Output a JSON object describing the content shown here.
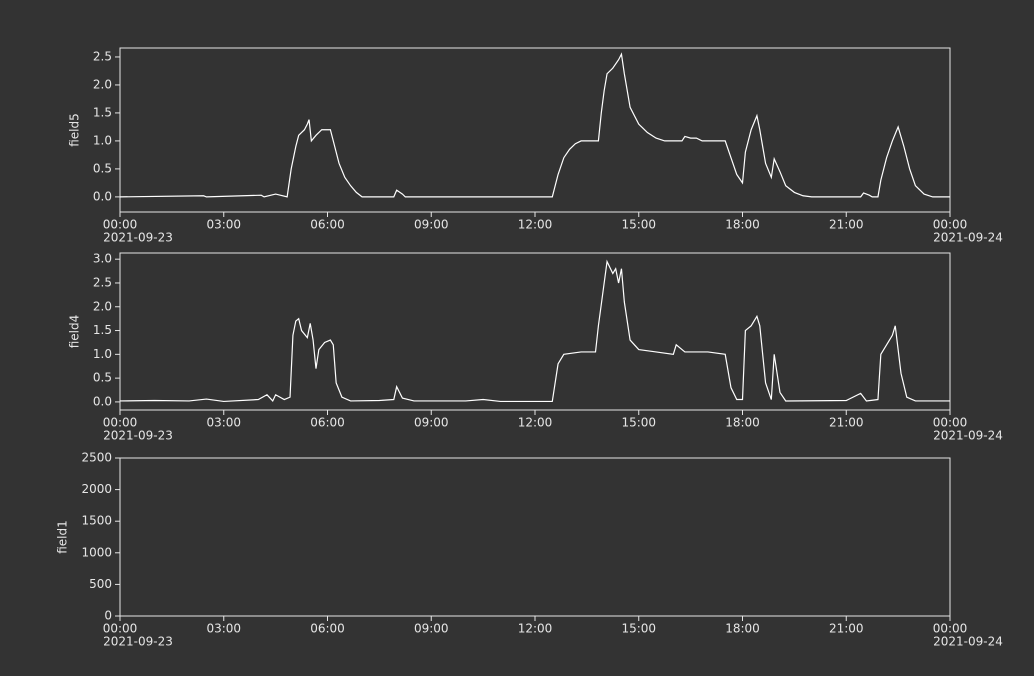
{
  "chart_data": [
    {
      "type": "line",
      "ylabel": "field5",
      "xlim": [
        "2021-09-23 00:00",
        "2021-09-24 00:00"
      ],
      "xticks": [
        {
          "value": "2021-09-23 00:00",
          "label": "00:00",
          "date": "2021-09-23"
        },
        {
          "value": "2021-09-23 03:00",
          "label": "03:00"
        },
        {
          "value": "2021-09-23 06:00",
          "label": "06:00"
        },
        {
          "value": "2021-09-23 09:00",
          "label": "09:00"
        },
        {
          "value": "2021-09-23 12:00",
          "label": "12:00"
        },
        {
          "value": "2021-09-23 15:00",
          "label": "15:00"
        },
        {
          "value": "2021-09-23 18:00",
          "label": "18:00"
        },
        {
          "value": "2021-09-23 21:00",
          "label": "21:00"
        },
        {
          "value": "2021-09-24 00:00",
          "label": "00:00",
          "date": "2021-09-24"
        }
      ],
      "ylim": [
        -0.27,
        2.66
      ],
      "yticks": [
        {
          "value": 0,
          "label": "0.0"
        },
        0.5,
        {
          "value": 1,
          "label": "1.0"
        },
        1.5,
        {
          "value": 2,
          "label": "2.0"
        },
        2.5
      ],
      "series": [
        {
          "color": "#ffffff",
          "x": [
            "2021-09-23 00:00",
            "2021-09-23 02:25",
            "2021-09-23 02:30",
            "2021-09-23 04:05",
            "2021-09-23 04:10",
            "2021-09-23 04:30",
            "2021-09-23 04:50",
            "2021-09-23 04:57",
            "2021-09-23 05:05",
            "2021-09-23 05:10",
            "2021-09-23 05:20",
            "2021-09-23 05:25",
            "2021-09-23 05:28",
            "2021-09-23 05:32",
            "2021-09-23 05:40",
            "2021-09-23 05:50",
            "2021-09-23 06:05",
            "2021-09-23 06:10",
            "2021-09-23 06:20",
            "2021-09-23 06:30",
            "2021-09-23 06:40",
            "2021-09-23 06:50",
            "2021-09-23 07:00",
            "2021-09-23 07:55",
            "2021-09-23 08:00",
            "2021-09-23 08:10",
            "2021-09-23 08:15",
            "2021-09-23 12:30",
            "2021-09-23 12:40",
            "2021-09-23 12:50",
            "2021-09-23 13:00",
            "2021-09-23 13:10",
            "2021-09-23 13:20",
            "2021-09-23 13:50",
            "2021-09-23 13:55",
            "2021-09-23 14:00",
            "2021-09-23 14:05",
            "2021-09-23 14:15",
            "2021-09-23 14:25",
            "2021-09-23 14:30",
            "2021-09-23 14:35",
            "2021-09-23 14:45",
            "2021-09-23 15:00",
            "2021-09-23 15:15",
            "2021-09-23 15:30",
            "2021-09-23 15:45",
            "2021-09-23 16:15",
            "2021-09-23 16:20",
            "2021-09-23 16:30",
            "2021-09-23 16:40",
            "2021-09-23 16:50",
            "2021-09-23 17:30",
            "2021-09-23 17:40",
            "2021-09-23 17:50",
            "2021-09-23 18:00",
            "2021-09-23 18:05",
            "2021-09-23 18:15",
            "2021-09-23 18:25",
            "2021-09-23 18:30",
            "2021-09-23 18:40",
            "2021-09-23 18:50",
            "2021-09-23 18:55",
            "2021-09-23 19:05",
            "2021-09-23 19:15",
            "2021-09-23 19:30",
            "2021-09-23 19:45",
            "2021-09-23 20:00",
            "2021-09-23 21:25",
            "2021-09-23 21:30",
            "2021-09-23 21:40",
            "2021-09-23 21:45",
            "2021-09-23 21:55",
            "2021-09-23 22:00",
            "2021-09-23 22:10",
            "2021-09-23 22:20",
            "2021-09-23 22:30",
            "2021-09-23 22:40",
            "2021-09-23 22:50",
            "2021-09-23 23:00",
            "2021-09-23 23:15",
            "2021-09-23 23:30",
            "2021-09-24 00:00"
          ],
          "values": [
            0,
            0.02,
            0,
            0.03,
            0,
            0.05,
            0,
            0.5,
            0.9,
            1.1,
            1.2,
            1.3,
            1.38,
            1.0,
            1.1,
            1.2,
            1.2,
            1.0,
            0.6,
            0.35,
            0.2,
            0.08,
            0,
            0,
            0.12,
            0.05,
            0,
            0,
            0.4,
            0.7,
            0.85,
            0.95,
            1.0,
            1.0,
            1.5,
            1.9,
            2.2,
            2.3,
            2.45,
            2.55,
            2.2,
            1.6,
            1.3,
            1.15,
            1.05,
            1.0,
            1.0,
            1.08,
            1.05,
            1.05,
            1.0,
            1.0,
            0.7,
            0.4,
            0.25,
            0.8,
            1.2,
            1.45,
            1.2,
            0.6,
            0.35,
            0.68,
            0.45,
            0.2,
            0.08,
            0.02,
            0,
            0,
            0.07,
            0.03,
            0,
            0,
            0.3,
            0.7,
            1.0,
            1.25,
            0.9,
            0.5,
            0.2,
            0.05,
            0,
            0
          ]
        }
      ]
    },
    {
      "type": "line",
      "ylabel": "field4",
      "xlim": [
        "2021-09-23 00:00",
        "2021-09-24 00:00"
      ],
      "xticks": [
        {
          "value": "2021-09-23 00:00",
          "label": "00:00",
          "date": "2021-09-23"
        },
        {
          "value": "2021-09-23 03:00",
          "label": "03:00"
        },
        {
          "value": "2021-09-23 06:00",
          "label": "06:00"
        },
        {
          "value": "2021-09-23 09:00",
          "label": "09:00"
        },
        {
          "value": "2021-09-23 12:00",
          "label": "12:00"
        },
        {
          "value": "2021-09-23 15:00",
          "label": "15:00"
        },
        {
          "value": "2021-09-23 18:00",
          "label": "18:00"
        },
        {
          "value": "2021-09-23 21:00",
          "label": "21:00"
        },
        {
          "value": "2021-09-24 00:00",
          "label": "00:00",
          "date": "2021-09-24"
        }
      ],
      "ylim": [
        -0.17,
        3.13
      ],
      "yticks": [
        {
          "value": 0,
          "label": "0.0"
        },
        0.5,
        {
          "value": 1,
          "label": "1.0"
        },
        1.5,
        {
          "value": 2,
          "label": "2.0"
        },
        2.5,
        {
          "value": 3,
          "label": "3.0"
        }
      ],
      "series": [
        {
          "color": "#ffffff",
          "x": [
            "2021-09-23 00:00",
            "2021-09-23 01:00",
            "2021-09-23 02:00",
            "2021-09-23 02:30",
            "2021-09-23 03:00",
            "2021-09-23 04:00",
            "2021-09-23 04:15",
            "2021-09-23 04:25",
            "2021-09-23 04:30",
            "2021-09-23 04:45",
            "2021-09-23 04:55",
            "2021-09-23 05:00",
            "2021-09-23 05:05",
            "2021-09-23 05:10",
            "2021-09-23 05:15",
            "2021-09-23 05:25",
            "2021-09-23 05:30",
            "2021-09-23 05:35",
            "2021-09-23 05:40",
            "2021-09-23 05:45",
            "2021-09-23 05:55",
            "2021-09-23 06:05",
            "2021-09-23 06:10",
            "2021-09-23 06:15",
            "2021-09-23 06:25",
            "2021-09-23 06:40",
            "2021-09-23 07:30",
            "2021-09-23 07:55",
            "2021-09-23 08:00",
            "2021-09-23 08:10",
            "2021-09-23 08:30",
            "2021-09-23 10:00",
            "2021-09-23 10:30",
            "2021-09-23 11:00",
            "2021-09-23 12:30",
            "2021-09-23 12:40",
            "2021-09-23 12:50",
            "2021-09-23 13:20",
            "2021-09-23 13:45",
            "2021-09-23 13:50",
            "2021-09-23 14:00",
            "2021-09-23 14:05",
            "2021-09-23 14:15",
            "2021-09-23 14:20",
            "2021-09-23 14:25",
            "2021-09-23 14:30",
            "2021-09-23 14:35",
            "2021-09-23 14:45",
            "2021-09-23 15:00",
            "2021-09-23 15:30",
            "2021-09-23 16:00",
            "2021-09-23 16:05",
            "2021-09-23 16:20",
            "2021-09-23 17:00",
            "2021-09-23 17:30",
            "2021-09-23 17:40",
            "2021-09-23 17:50",
            "2021-09-23 18:00",
            "2021-09-23 18:05",
            "2021-09-23 18:15",
            "2021-09-23 18:25",
            "2021-09-23 18:30",
            "2021-09-23 18:40",
            "2021-09-23 18:50",
            "2021-09-23 18:55",
            "2021-09-23 19:05",
            "2021-09-23 19:15",
            "2021-09-23 21:00",
            "2021-09-23 21:25",
            "2021-09-23 21:35",
            "2021-09-23 21:55",
            "2021-09-23 22:00",
            "2021-09-23 22:10",
            "2021-09-23 22:20",
            "2021-09-23 22:25",
            "2021-09-23 22:35",
            "2021-09-23 22:45",
            "2021-09-23 23:00",
            "2021-09-24 00:00"
          ],
          "values": [
            0.02,
            0.03,
            0.02,
            0.06,
            0.01,
            0.05,
            0.15,
            0.02,
            0.15,
            0.05,
            0.1,
            1.4,
            1.7,
            1.75,
            1.5,
            1.35,
            1.65,
            1.3,
            0.7,
            1.1,
            1.25,
            1.3,
            1.2,
            0.4,
            0.1,
            0.02,
            0.03,
            0.05,
            0.32,
            0.08,
            0.02,
            0.02,
            0.05,
            0.01,
            0.01,
            0.8,
            1.0,
            1.05,
            1.05,
            1.6,
            2.5,
            2.95,
            2.7,
            2.8,
            2.5,
            2.8,
            2.1,
            1.3,
            1.1,
            1.05,
            1.0,
            1.2,
            1.05,
            1.05,
            1.0,
            0.3,
            0.05,
            0.05,
            1.5,
            1.6,
            1.8,
            1.6,
            0.4,
            0.05,
            1.0,
            0.2,
            0.02,
            0.03,
            0.18,
            0.02,
            0.05,
            1.0,
            1.2,
            1.4,
            1.6,
            0.6,
            0.1,
            0.02,
            0.02
          ]
        }
      ]
    },
    {
      "type": "line",
      "ylabel": "field1",
      "xlim": [
        "2021-09-23 00:00",
        "2021-09-24 00:00"
      ],
      "xticks": [
        {
          "value": "2021-09-23 00:00",
          "label": "00:00",
          "date": "2021-09-23"
        },
        {
          "value": "2021-09-23 03:00",
          "label": "03:00"
        },
        {
          "value": "2021-09-23 06:00",
          "label": "06:00"
        },
        {
          "value": "2021-09-23 09:00",
          "label": "09:00"
        },
        {
          "value": "2021-09-23 12:00",
          "label": "12:00"
        },
        {
          "value": "2021-09-23 15:00",
          "label": "15:00"
        },
        {
          "value": "2021-09-23 18:00",
          "label": "18:00"
        },
        {
          "value": "2021-09-23 21:00",
          "label": "21:00"
        },
        {
          "value": "2021-09-24 00:00",
          "label": "00:00",
          "date": "2021-09-24"
        }
      ],
      "ylim": [
        0,
        2500
      ],
      "yticks": [
        0,
        500,
        1000,
        1500,
        2000,
        2500
      ],
      "series": []
    }
  ]
}
